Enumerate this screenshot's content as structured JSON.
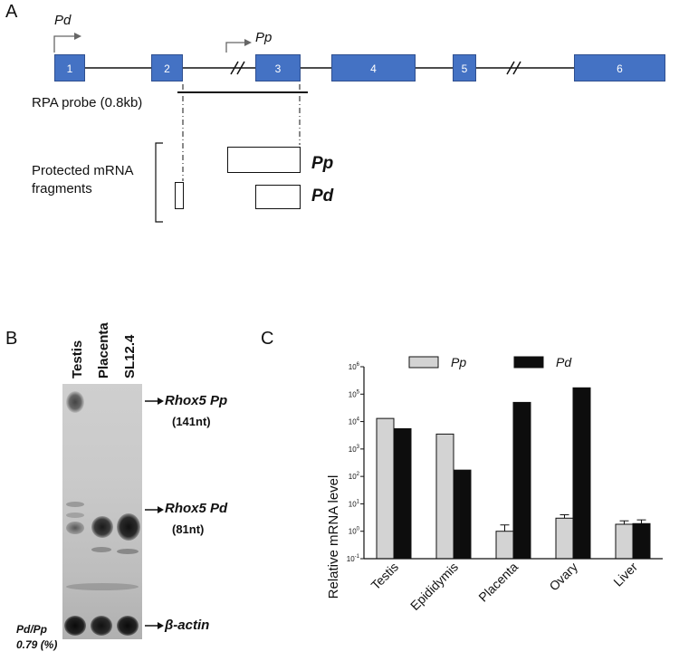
{
  "panelA": {
    "letter": "A",
    "promoter_d": "Pd",
    "promoter_p": "Pp",
    "exons": [
      "1",
      "2",
      "3",
      "4",
      "5",
      "6"
    ],
    "probe_label": "RPA probe (0.8kb)",
    "protected_label_1": "Protected mRNA",
    "protected_label_2": "fragments",
    "fragment_p": "Pp",
    "fragment_d": "Pd"
  },
  "panelB": {
    "letter": "B",
    "lanes": [
      "Testis",
      "Placenta",
      "SL12.4"
    ],
    "band_pp_name": "Rhox5 Pp",
    "band_pp_size": "(141nt)",
    "band_pd_name": "Rhox5 Pd",
    "band_pd_size": "(81nt)",
    "band_actin": "β-actin",
    "ratio_label": "Pd/Pp",
    "ratio_value": "0.79 (%)"
  },
  "panelC": {
    "letter": "C"
  },
  "chart_data": {
    "type": "bar",
    "title": "",
    "xlabel": "",
    "ylabel": "Relative mRNA level",
    "yscale": "log",
    "ylim": [
      0.1,
      1000000
    ],
    "ytick_labels": [
      [
        "10",
        "-1"
      ],
      [
        "10",
        "0"
      ],
      [
        "10",
        "1"
      ],
      [
        "10",
        "2"
      ],
      [
        "10",
        "3"
      ],
      [
        "10",
        "4"
      ],
      [
        "10",
        "5"
      ],
      [
        "10",
        "6"
      ]
    ],
    "categories": [
      "Testis",
      "Epididymis",
      "Placenta",
      "Ovary",
      "Liver"
    ],
    "series": [
      {
        "name": "Pp",
        "color": "#d3d3d3",
        "values": [
          13000,
          3500,
          1.0,
          3.0,
          1.8
        ],
        "errors": [
          null,
          null,
          0.7,
          1.0,
          0.6
        ]
      },
      {
        "name": "Pd",
        "color": "#0d0d0d",
        "values": [
          5500,
          170,
          50000,
          170000,
          1.9
        ],
        "errors": [
          null,
          null,
          null,
          null,
          0.7
        ]
      }
    ],
    "legend_position": "top"
  }
}
